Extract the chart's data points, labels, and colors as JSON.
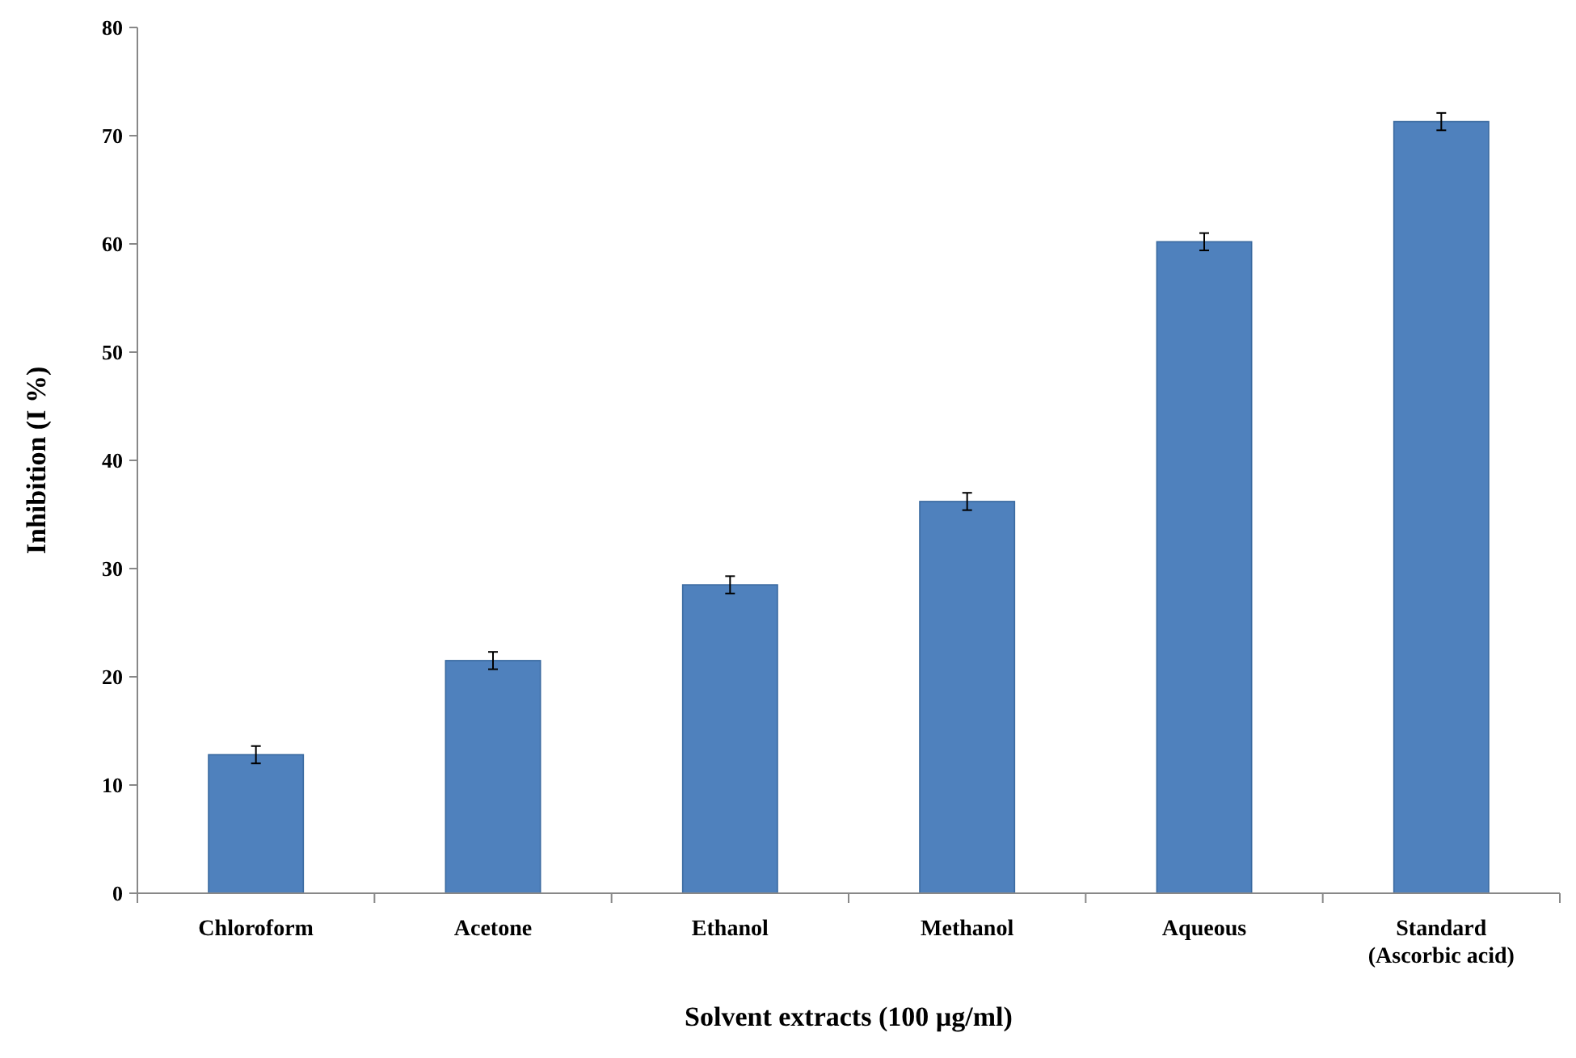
{
  "chart_data": {
    "type": "bar",
    "xlabel": "Solvent extracts (100 µg/ml)",
    "ylabel": "Inhibition (I %)",
    "categories": [
      "Chloroform",
      "Acetone",
      "Ethanol",
      "Methanol",
      "Aqueous",
      "Standard (Ascorbic acid)"
    ],
    "values": [
      12.8,
      21.5,
      28.5,
      36.2,
      60.2,
      71.3
    ],
    "errors": [
      0.8,
      0.8,
      0.8,
      0.8,
      0.8,
      0.8
    ],
    "color": "#4f81bd",
    "ylim": [
      0,
      80
    ],
    "yticks": [
      0,
      10,
      20,
      30,
      40,
      50,
      60,
      70,
      80
    ],
    "grid": false
  }
}
